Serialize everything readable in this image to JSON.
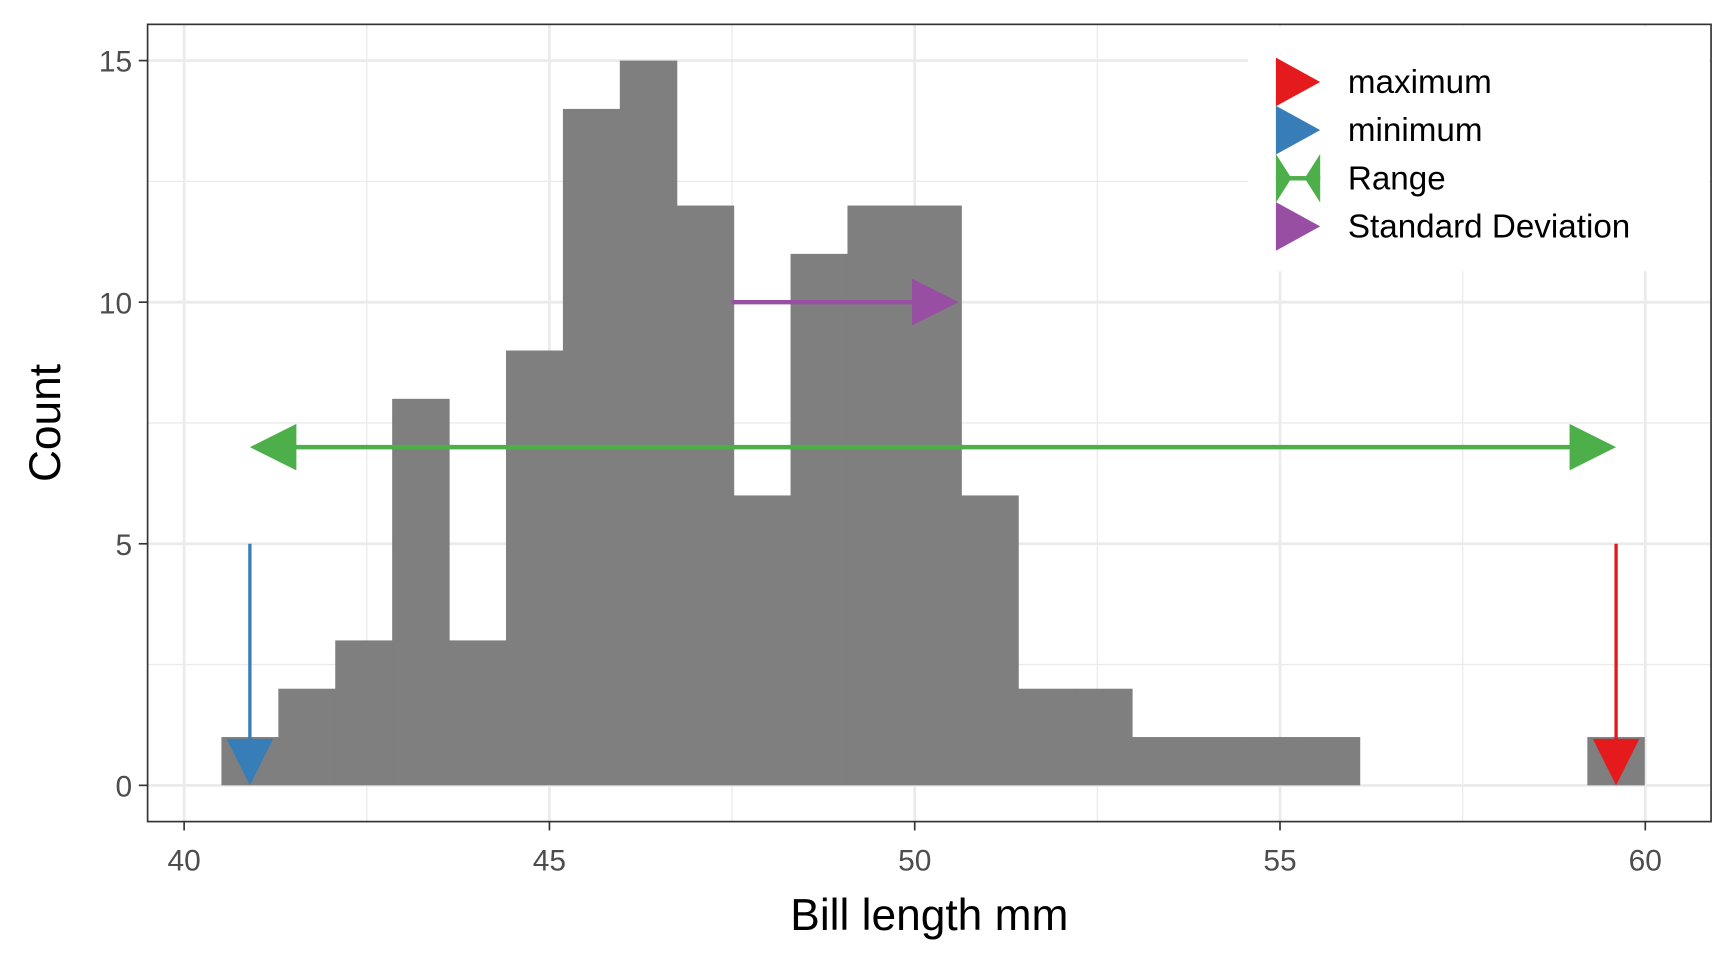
{
  "chart_data": {
    "type": "bar",
    "subtype": "histogram",
    "xlabel": "Bill length mm",
    "ylabel": "Count",
    "xlim": [
      39.5,
      60.9
    ],
    "ylim": [
      -0.75,
      15.75
    ],
    "xticks": [
      40,
      45,
      50,
      55,
      60
    ],
    "yticks": [
      0,
      5,
      10,
      15
    ],
    "grid": true,
    "bin_centers_start": 40.9,
    "bin_width": 0.779,
    "counts": [
      1,
      2,
      3,
      8,
      3,
      9,
      14,
      15,
      12,
      6,
      11,
      12,
      12,
      6,
      2,
      2,
      1,
      1,
      1,
      1,
      0,
      0,
      0,
      0,
      1
    ],
    "bar_color": "#7f7f7f",
    "annotations": [
      {
        "name": "maximum",
        "type": "arrow-down",
        "x": 59.6,
        "y_from": 5,
        "y_to": 0,
        "color": "#e41a1c"
      },
      {
        "name": "minimum",
        "type": "arrow-down",
        "x": 40.9,
        "y_from": 5,
        "y_to": 0,
        "color": "#377eb8"
      },
      {
        "name": "Range",
        "type": "double-arrow",
        "x_from": 40.9,
        "x_to": 59.6,
        "y": 7,
        "color": "#4daf4a"
      },
      {
        "name": "Standard Deviation",
        "type": "arrow-right",
        "x_from": 47.5,
        "x_to": 50.6,
        "y": 10,
        "color": "#984ea3"
      }
    ],
    "legend": {
      "position": "top-right",
      "entries": [
        "maximum",
        "minimum",
        "Range",
        "Standard Deviation"
      ],
      "colors": [
        "#e41a1c",
        "#377eb8",
        "#4daf4a",
        "#984ea3"
      ]
    }
  }
}
